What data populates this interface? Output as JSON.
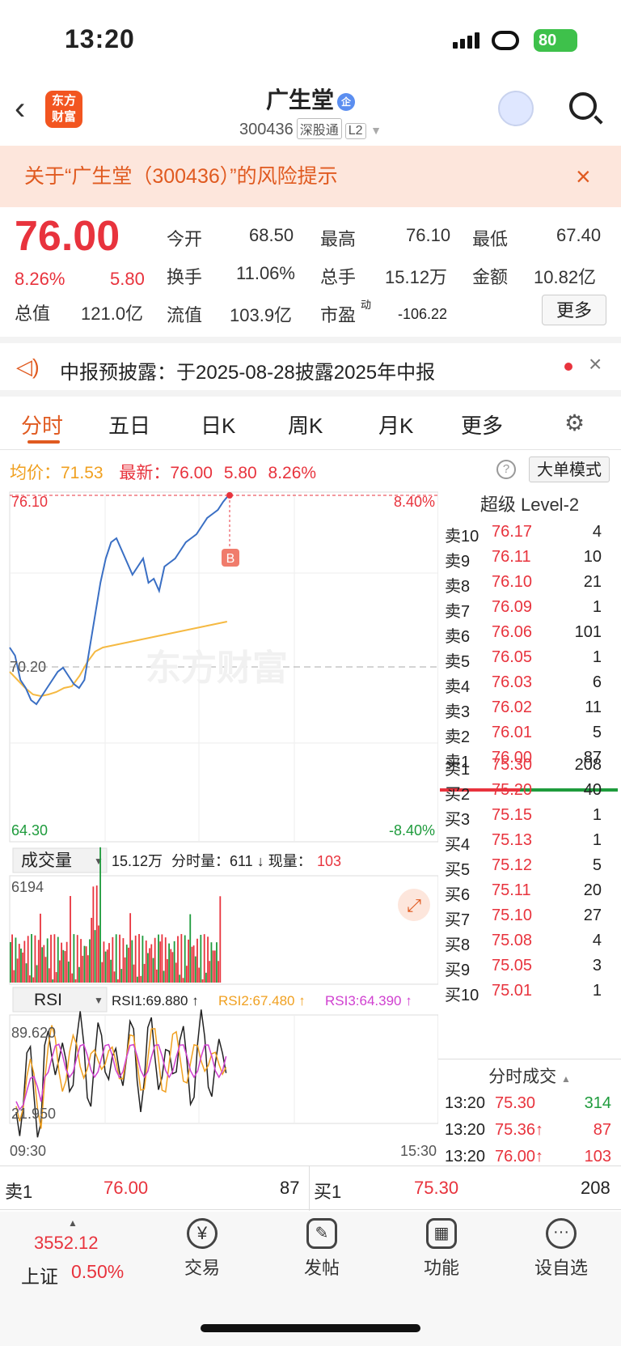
{
  "status": {
    "time": "13:20",
    "battery": "80"
  },
  "header": {
    "title": "广生堂",
    "qi": "企",
    "code": "300436",
    "tag1": "深股通",
    "tag2": "L2",
    "logo1": "东方",
    "logo2": "财富"
  },
  "risk": {
    "text": "关于“广生堂（300436）”的风险提示"
  },
  "quote": {
    "price": "76.00",
    "pct": "8.26%",
    "chg": "5.80",
    "open_label": "今开",
    "open": "68.50",
    "high_label": "最高",
    "high": "76.10",
    "low_label": "最低",
    "low": "67.40",
    "turnover_label": "换手",
    "turnover": "11.06%",
    "vol_label": "总手",
    "vol": "15.12万",
    "amount_label": "金额",
    "amount": "10.82亿",
    "mcap_label": "总值",
    "mcap": "121.0亿",
    "float_label": "流值",
    "float": "103.9亿",
    "pe_label": "市盈",
    "pe_sup": "动",
    "pe": "-106.22",
    "more": "更多"
  },
  "notice": {
    "text": "中报预披露：于2025-08-28披露2025年中报"
  },
  "tabs": [
    "分时",
    "五日",
    "日K",
    "周K",
    "月K",
    "更多"
  ],
  "info": {
    "avg_label": "均价：",
    "avg": "71.53",
    "latest_label": "最新：",
    "latest": "76.00",
    "chg": "5.80",
    "pct": "8.26%",
    "mode": "大单模式"
  },
  "chart": {
    "y_top": "76.10",
    "y_mid": "70.20",
    "y_bot": "64.30",
    "pct_top": "8.40%",
    "pct_bot": "-8.40%",
    "marker": "B",
    "watermark": "东方财富",
    "vol_label": "成交量",
    "vol_total": "15.12万",
    "vol_info": "分时量：611 ↓ 现量：",
    "vol_now": "103",
    "vol_max": "6194",
    "rsi_label": "RSI",
    "rsi1": "RSI1:69.880 ↑",
    "rsi2": "RSI2:67.480 ↑",
    "rsi3": "RSI3:64.390 ↑",
    "rsi_top": "89.620",
    "rsi_bot": "21.950",
    "t_start": "09:30",
    "t_end": "15:30"
  },
  "level2": {
    "title": "超级 Level-2",
    "asks": [
      [
        "卖10",
        "76.17",
        "4"
      ],
      [
        "卖9",
        "76.11",
        "10"
      ],
      [
        "卖8",
        "76.10",
        "21"
      ],
      [
        "卖7",
        "76.09",
        "1"
      ],
      [
        "卖6",
        "76.06",
        "101"
      ],
      [
        "卖5",
        "76.05",
        "1"
      ],
      [
        "卖4",
        "76.03",
        "6"
      ],
      [
        "卖3",
        "76.02",
        "11"
      ],
      [
        "卖2",
        "76.01",
        "5"
      ],
      [
        "卖1",
        "76.00",
        "87"
      ]
    ],
    "bids": [
      [
        "买1",
        "75.30",
        "208"
      ],
      [
        "买2",
        "75.20",
        "40"
      ],
      [
        "买3",
        "75.15",
        "1"
      ],
      [
        "买4",
        "75.13",
        "1"
      ],
      [
        "买5",
        "75.12",
        "5"
      ],
      [
        "买6",
        "75.11",
        "20"
      ],
      [
        "买7",
        "75.10",
        "27"
      ],
      [
        "买8",
        "75.08",
        "4"
      ],
      [
        "买9",
        "75.05",
        "3"
      ],
      [
        "买10",
        "75.01",
        "1"
      ]
    ],
    "ticks_title": "分时成交",
    "ticks": [
      [
        "13:20",
        "75.30",
        "314"
      ],
      [
        "13:20",
        "75.36↑",
        "87"
      ],
      [
        "13:20",
        "76.00↑",
        "103"
      ]
    ]
  },
  "bottom": {
    "sell_label": "卖1",
    "sell_price": "76.00",
    "sell_vol": "87",
    "buy_label": "买1",
    "buy_price": "75.30",
    "buy_vol": "208"
  },
  "dock": {
    "index_val": "3552.12",
    "index_name": "上证",
    "index_pct": "0.50%",
    "items": [
      "交易",
      "发帖",
      "功能",
      "设自选"
    ]
  }
}
